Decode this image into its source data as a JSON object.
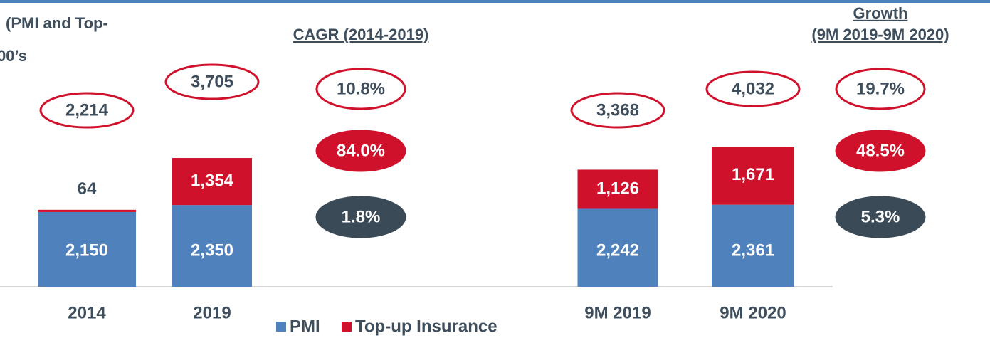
{
  "chart_data": {
    "type": "stacked_bar",
    "title": [
      "(PMI and Top-",
      "00’s"
    ],
    "categories": [
      "2014",
      "2019",
      "9M 2019",
      "9M 2020"
    ],
    "series": [
      {
        "name": "PMI",
        "color": "#4f81bd",
        "values": [
          2150,
          2350,
          2242,
          2361
        ],
        "value_labels": [
          "2,150",
          "2,350",
          "2,242",
          "2,361"
        ]
      },
      {
        "name": "Top-up Insurance",
        "color": "#d0112b",
        "values": [
          64,
          1354,
          1126,
          1671
        ],
        "value_labels": [
          "64",
          "1,354",
          "1,126",
          "1,671"
        ]
      }
    ],
    "totals": [
      2214,
      3705,
      3368,
      4032
    ],
    "total_labels": [
      "2,214",
      "3,705",
      "3,368",
      "4,032"
    ],
    "growth": [
      {
        "title": [
          "CAGR (2014-2019)"
        ],
        "values": [
          10.8,
          84.0,
          1.8
        ],
        "value_labels": [
          "10.8%",
          "84.0%",
          "1.8%"
        ]
      },
      {
        "title": [
          "Growth",
          "(9M 2019-9M 2020)"
        ],
        "values": [
          19.7,
          48.5,
          5.3
        ],
        "value_labels": [
          "19.7%",
          "48.5%",
          "5.3%"
        ]
      }
    ]
  }
}
